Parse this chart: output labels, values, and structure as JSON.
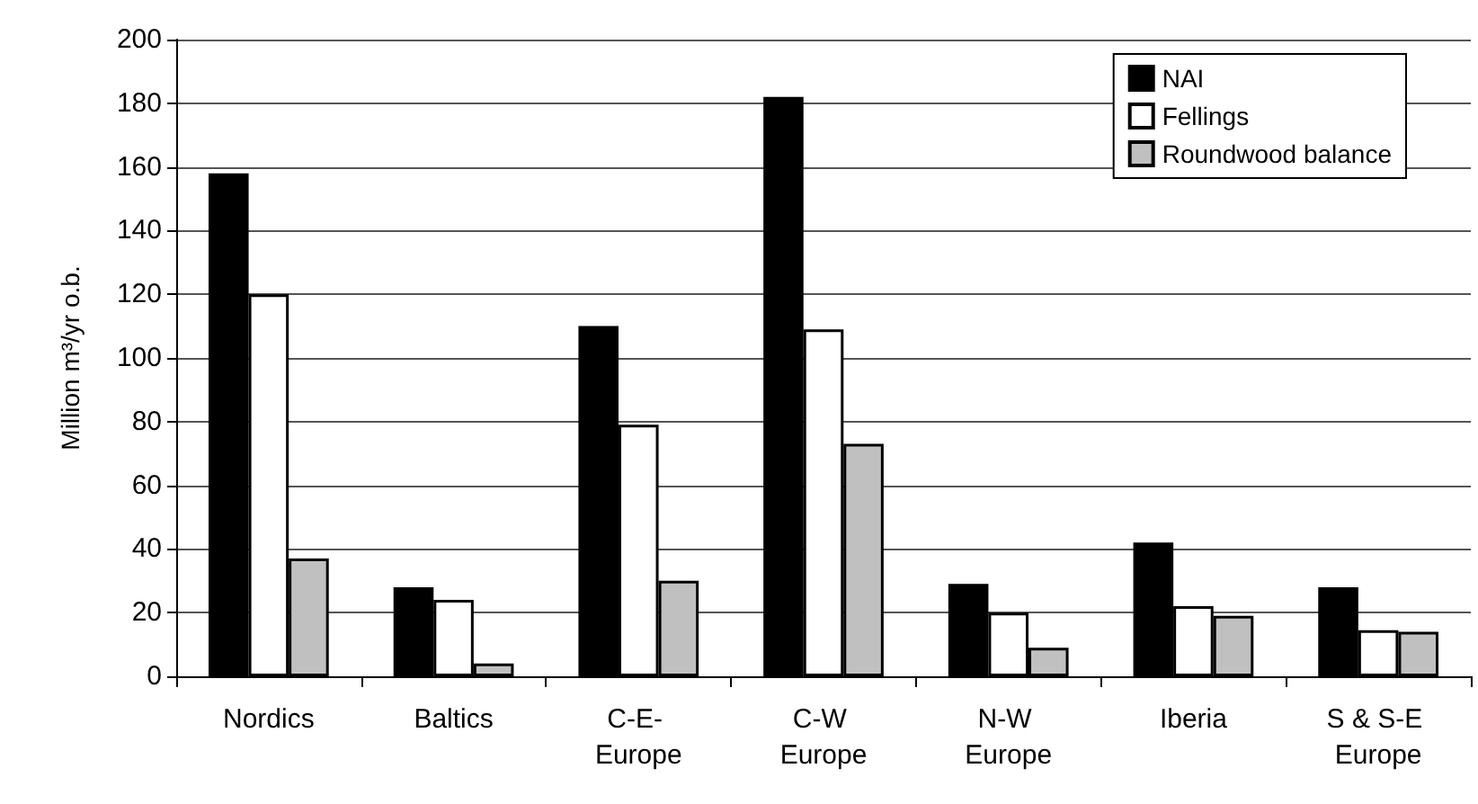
{
  "chart_data": {
    "type": "bar",
    "ylabel": "Million m³/yr o.b.",
    "categories": [
      "Nordics",
      "Baltics",
      "C-E- Europe",
      "C-W Europe",
      "N-W Europe",
      "Iberia",
      "S & S-E Europe"
    ],
    "series": [
      {
        "name": "NAI",
        "color": "#000000",
        "values": [
          158,
          28,
          110,
          182,
          29,
          42,
          28
        ]
      },
      {
        "name": "Fellings",
        "color": "#ffffff",
        "values": [
          120,
          24,
          79,
          109,
          20,
          22,
          14.5
        ]
      },
      {
        "name": "Roundwood balance",
        "color": "#c0c0c0",
        "values": [
          37,
          4,
          30,
          73,
          9,
          19,
          14
        ]
      }
    ],
    "ylim": [
      0,
      200
    ],
    "yticks": [
      0,
      20,
      40,
      60,
      80,
      100,
      120,
      140,
      160,
      180,
      200
    ],
    "grid": "y",
    "legend": "top right"
  }
}
